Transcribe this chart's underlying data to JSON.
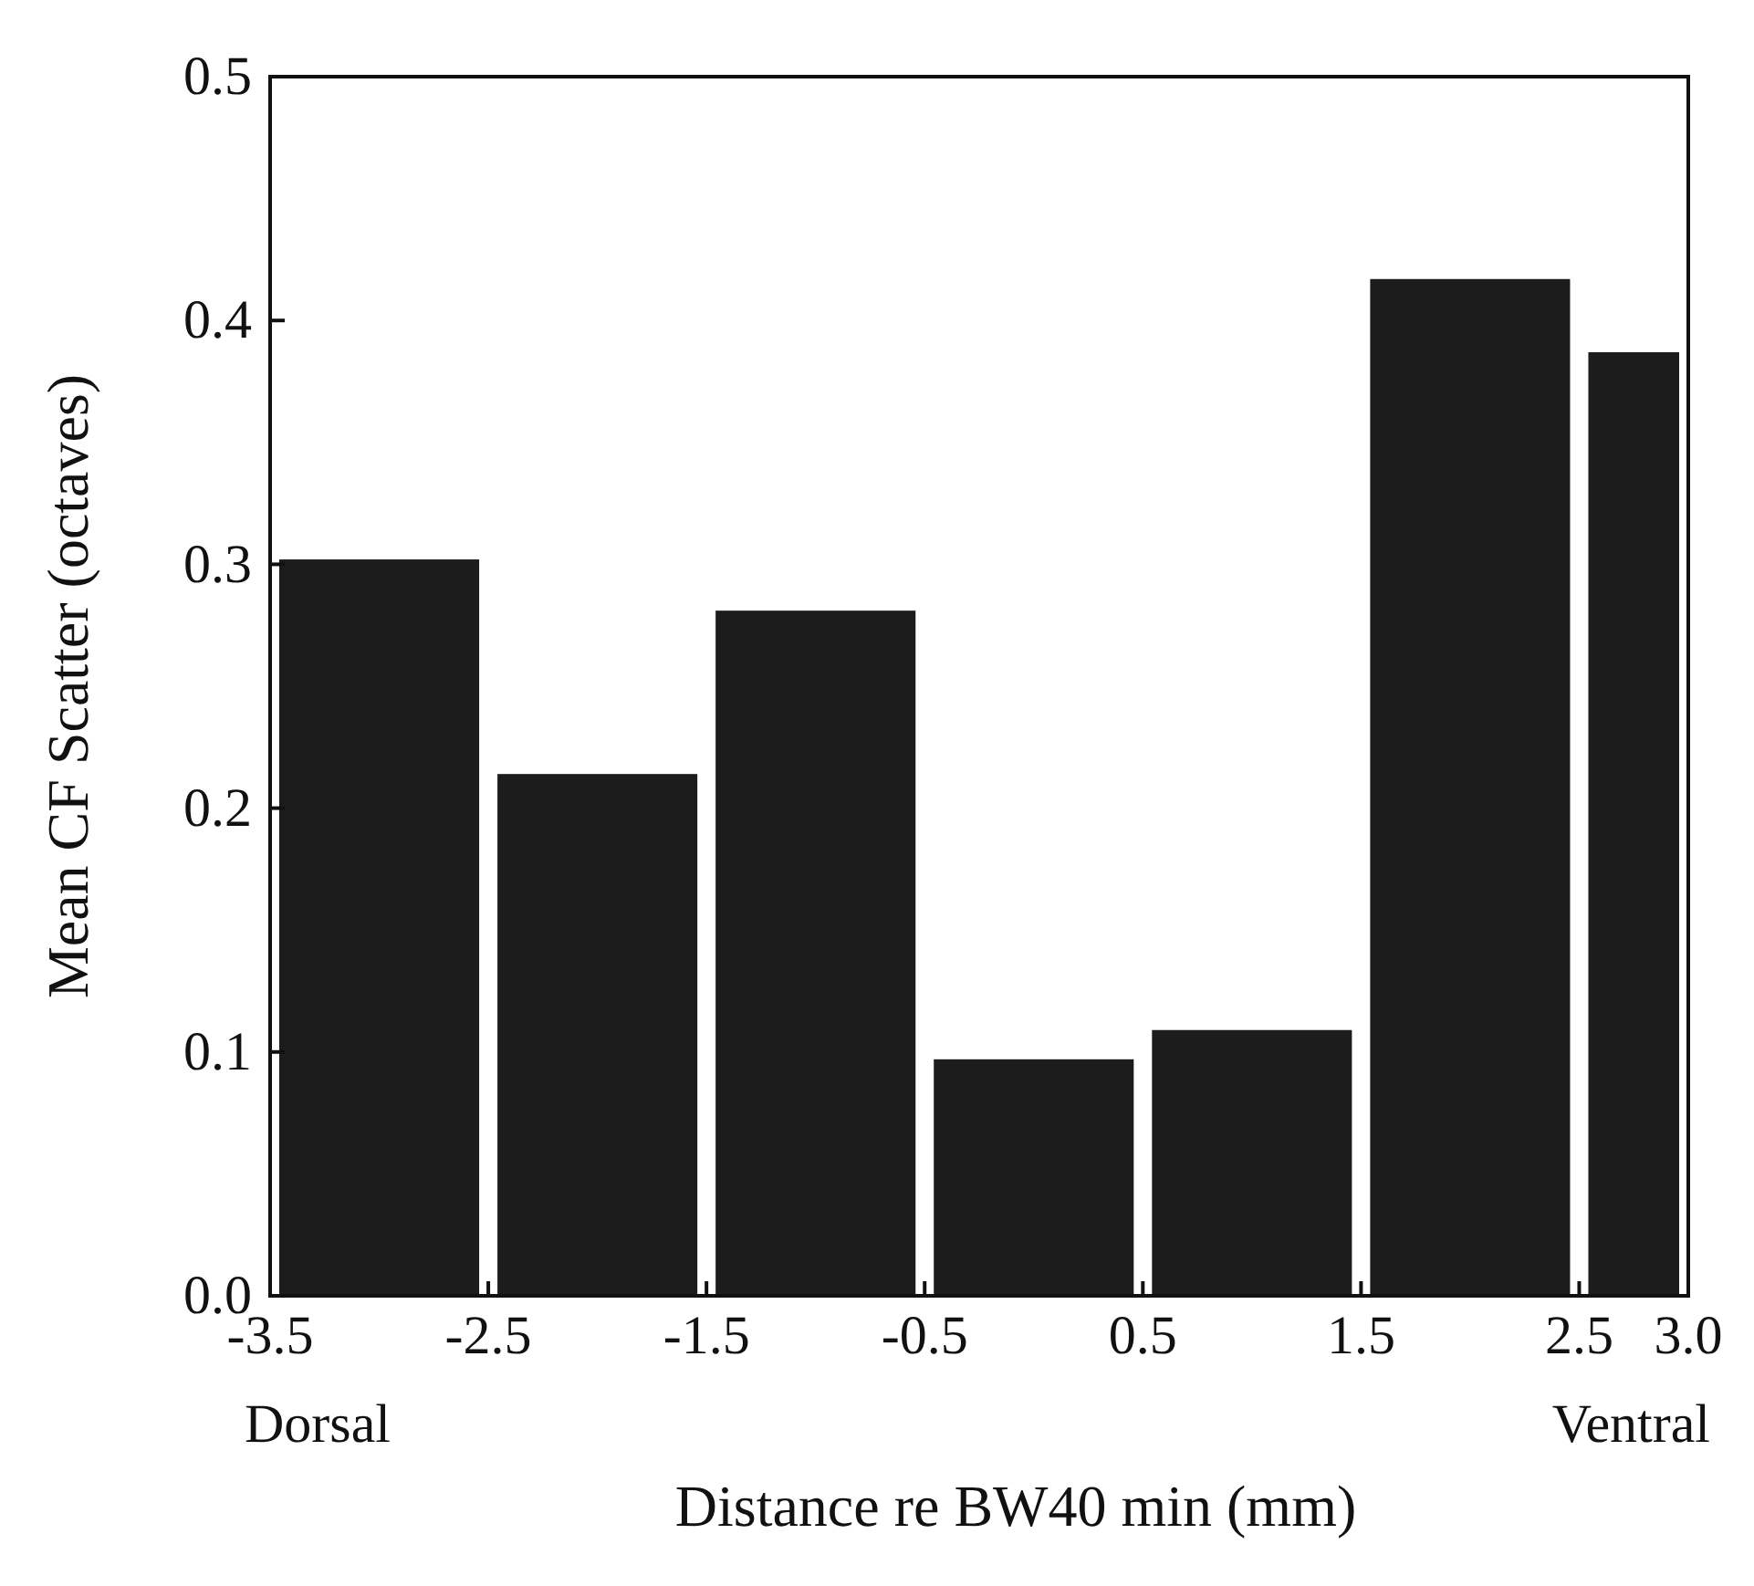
{
  "chart_data": {
    "type": "histogram",
    "xlabel": "Distance re BW40 min (mm)",
    "ylabel": "Mean CF Scatter (octaves)",
    "bins": [
      -3.5,
      -2.5,
      -1.5,
      -0.5,
      0.5,
      1.5,
      2.5,
      3.0
    ],
    "values": [
      0.302,
      0.214,
      0.281,
      0.097,
      0.109,
      0.417,
      0.387
    ],
    "color": "#1c1c1c",
    "xlim": [
      -3.5,
      3.0
    ],
    "xticks": [
      -3.5,
      -2.5,
      -1.5,
      -0.5,
      0.5,
      1.5,
      2.5,
      {
        "value": 3.0,
        "label": "3.0"
      }
    ],
    "ylim": [
      0,
      0.5
    ],
    "yticks": [
      {
        "value": 0,
        "label": "0.0"
      },
      0.1,
      0.2,
      0.3,
      0.4,
      0.5
    ],
    "annotations": [
      "Dorsal",
      "Ventral"
    ],
    "grid": false
  }
}
